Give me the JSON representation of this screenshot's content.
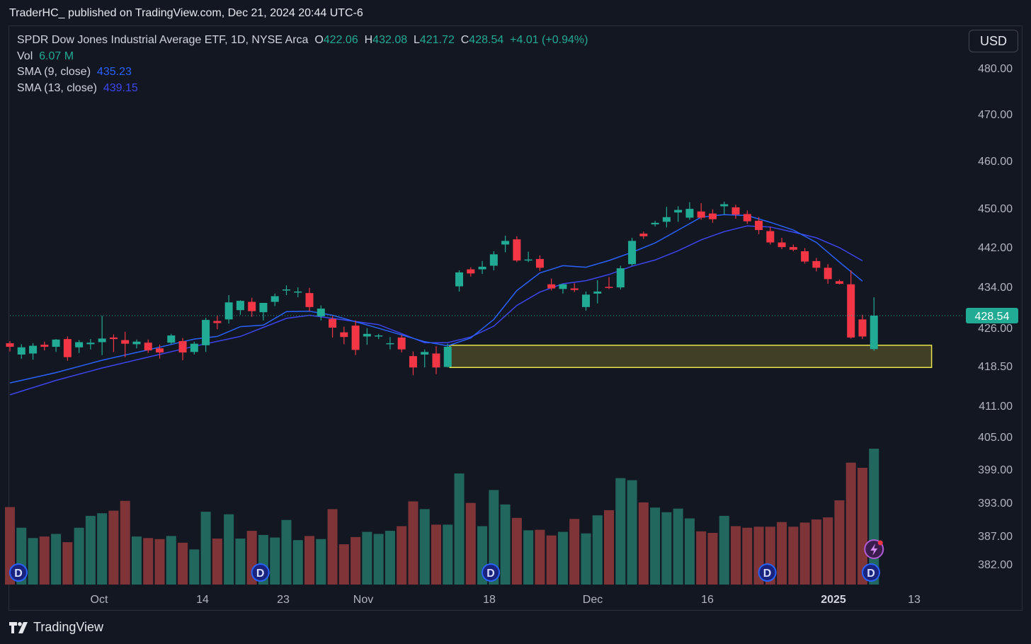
{
  "publisher_line": "TraderHC_ published on TradingView.com, Dec 21, 2024 20:44 UTC-6",
  "currency_button": "USD",
  "footer_brand": "TradingView",
  "legend": {
    "symbol": "SPDR Dow Jones Industrial Average ETF, 1D, NYSE Arca",
    "o_label": "O",
    "o_value": "422.06",
    "h_label": "H",
    "h_value": "432.08",
    "l_label": "L",
    "l_value": "421.72",
    "c_label": "C",
    "c_value": "428.54",
    "change": "+4.01 (+0.94%)",
    "vol_label": "Vol",
    "vol_value": "6.07 M",
    "sma9_label": "SMA (9, close)",
    "sma9_value": "435.23",
    "sma13_label": "SMA (13, close)",
    "sma13_value": "439.15"
  },
  "colors": {
    "up": "#22ab94",
    "down": "#f23645",
    "up_vol": "#22675e",
    "down_vol": "#7f3438",
    "sma9": "#2962ff",
    "sma13": "#3d45f0",
    "zone_fill": "#4a4627",
    "zone_stroke": "#e8e34b",
    "last_price_bg": "#22ab94"
  },
  "icons": {
    "dividend": "D",
    "flash": "lightning-icon"
  },
  "chart_data": {
    "type": "candlestick",
    "title": "SPDR Dow Jones Industrial Average ETF, 1D, NYSE Arca",
    "price_ticks": [
      "480.00",
      "470.00",
      "460.00",
      "450.00",
      "442.00",
      "434.00",
      "426.00",
      "418.50",
      "411.00",
      "405.00",
      "399.00",
      "393.00",
      "387.00",
      "382.00"
    ],
    "last_price": "428.54",
    "time_ticks": [
      {
        "label": "Oct",
        "bold": false
      },
      {
        "label": "14",
        "bold": false
      },
      {
        "label": "23",
        "bold": false
      },
      {
        "label": "Nov",
        "bold": false
      },
      {
        "label": "18",
        "bold": false
      },
      {
        "label": "Dec",
        "bold": false
      },
      {
        "label": "16",
        "bold": false
      },
      {
        "label": "2025",
        "bold": true
      },
      {
        "label": "13",
        "bold": false
      }
    ],
    "grid": false,
    "candles": [
      {
        "o": 423.2,
        "h": 423.6,
        "l": 421.6,
        "c": 422.5,
        "v": 15
      },
      {
        "o": 421.0,
        "h": 423.0,
        "l": 420.2,
        "c": 422.4,
        "v": 11
      },
      {
        "o": 421.2,
        "h": 423.2,
        "l": 420.0,
        "c": 422.7,
        "v": 9
      },
      {
        "o": 422.9,
        "h": 423.5,
        "l": 421.8,
        "c": 422.5,
        "v": 9.3
      },
      {
        "o": 422.5,
        "h": 424.0,
        "l": 421.5,
        "c": 423.9,
        "v": 9.8
      },
      {
        "o": 424.0,
        "h": 424.5,
        "l": 419.8,
        "c": 420.5,
        "v": 8.2
      },
      {
        "o": 422.4,
        "h": 423.8,
        "l": 421.3,
        "c": 423.4,
        "v": 11
      },
      {
        "o": 423.0,
        "h": 424.0,
        "l": 422.0,
        "c": 423.3,
        "v": 13.3
      },
      {
        "o": 423.4,
        "h": 428.5,
        "l": 420.9,
        "c": 424.1,
        "v": 13.8
      },
      {
        "o": 424.3,
        "h": 424.9,
        "l": 421.5,
        "c": 424.0,
        "v": 14.3
      },
      {
        "o": 423.8,
        "h": 425.4,
        "l": 420.5,
        "c": 423.1,
        "v": 16.2
      },
      {
        "o": 423.0,
        "h": 423.9,
        "l": 422.2,
        "c": 423.5,
        "v": 9.3
      },
      {
        "o": 423.3,
        "h": 423.9,
        "l": 421.3,
        "c": 421.8,
        "v": 9
      },
      {
        "o": 422.2,
        "h": 422.9,
        "l": 420.2,
        "c": 421.4,
        "v": 8.8
      },
      {
        "o": 423.3,
        "h": 425.0,
        "l": 423.0,
        "c": 424.7,
        "v": 9.4
      },
      {
        "o": 423.6,
        "h": 424.2,
        "l": 419.9,
        "c": 421.4,
        "v": 8.1
      },
      {
        "o": 421.5,
        "h": 423.5,
        "l": 421.0,
        "c": 423.1,
        "v": 6.8
      },
      {
        "o": 422.8,
        "h": 428.1,
        "l": 421.5,
        "c": 427.7,
        "v": 14.1
      },
      {
        "o": 427.5,
        "h": 428.6,
        "l": 425.9,
        "c": 427.1,
        "v": 8.9
      },
      {
        "o": 427.8,
        "h": 432.5,
        "l": 427.0,
        "c": 431.1,
        "v": 13.6
      },
      {
        "o": 429.6,
        "h": 431.5,
        "l": 428.7,
        "c": 431.4,
        "v": 8.9
      },
      {
        "o": 431.2,
        "h": 432.0,
        "l": 428.3,
        "c": 429.4,
        "v": 10.4
      },
      {
        "o": 429.2,
        "h": 431.0,
        "l": 427.6,
        "c": 431.0,
        "v": 9.6
      },
      {
        "o": 431.2,
        "h": 432.8,
        "l": 430.4,
        "c": 432.3,
        "v": 9.1
      },
      {
        "o": 433.4,
        "h": 434.4,
        "l": 432.5,
        "c": 433.6,
        "v": 12.5
      },
      {
        "o": 433.0,
        "h": 434.0,
        "l": 432.1,
        "c": 433.2,
        "v": 8.6
      },
      {
        "o": 432.9,
        "h": 433.9,
        "l": 429.4,
        "c": 430.2,
        "v": 9.4
      },
      {
        "o": 428.4,
        "h": 430.5,
        "l": 427.6,
        "c": 429.9,
        "v": 8.8
      },
      {
        "o": 427.9,
        "h": 428.5,
        "l": 424.3,
        "c": 426.2,
        "v": 14.6
      },
      {
        "o": 425.3,
        "h": 426.4,
        "l": 423.0,
        "c": 424.4,
        "v": 7.8
      },
      {
        "o": 426.6,
        "h": 427.6,
        "l": 420.9,
        "c": 421.9,
        "v": 9.2
      },
      {
        "o": 424.5,
        "h": 426.1,
        "l": 422.9,
        "c": 425.0,
        "v": 10.2
      },
      {
        "o": 424.5,
        "h": 425.0,
        "l": 424.0,
        "c": 424.7,
        "v": 9.8
      },
      {
        "o": 423.0,
        "h": 424.4,
        "l": 422.0,
        "c": 423.2,
        "v": 10.4
      },
      {
        "o": 424.3,
        "h": 424.8,
        "l": 421.4,
        "c": 422.0,
        "v": 11.3
      },
      {
        "o": 420.7,
        "h": 421.6,
        "l": 417.0,
        "c": 418.5,
        "v": 16.1
      },
      {
        "o": 421.0,
        "h": 422.0,
        "l": 418.5,
        "c": 421.5,
        "v": 14.6
      },
      {
        "o": 421.2,
        "h": 422.6,
        "l": 417.2,
        "c": 418.5,
        "v": 11.6
      },
      {
        "o": 418.6,
        "h": 423.1,
        "l": 418.5,
        "c": 422.5,
        "v": 11.6
      },
      {
        "o": 434.2,
        "h": 437.3,
        "l": 433.2,
        "c": 436.9,
        "v": 21.5
      },
      {
        "o": 437.5,
        "h": 437.9,
        "l": 436.1,
        "c": 436.7,
        "v": 15.8
      },
      {
        "o": 437.5,
        "h": 439.1,
        "l": 436.6,
        "c": 438.0,
        "v": 11.3
      },
      {
        "o": 438.2,
        "h": 441.0,
        "l": 437.3,
        "c": 440.4,
        "v": 18.3
      },
      {
        "o": 442.3,
        "h": 444.0,
        "l": 440.8,
        "c": 443.0,
        "v": 15.5
      },
      {
        "o": 443.3,
        "h": 443.9,
        "l": 438.9,
        "c": 439.2,
        "v": 12.9
      },
      {
        "o": 439.2,
        "h": 440.9,
        "l": 438.9,
        "c": 439.4,
        "v": 10.5
      },
      {
        "o": 439.5,
        "h": 440.2,
        "l": 437.2,
        "c": 437.8,
        "v": 10.6
      },
      {
        "o": 434.6,
        "h": 435.7,
        "l": 433.4,
        "c": 433.8,
        "v": 9.5
      },
      {
        "o": 433.7,
        "h": 434.7,
        "l": 432.8,
        "c": 434.6,
        "v": 10.2
      },
      {
        "o": 433.8,
        "h": 434.8,
        "l": 433.1,
        "c": 433.5,
        "v": 12.7
      },
      {
        "o": 430.2,
        "h": 433.2,
        "l": 429.5,
        "c": 432.6,
        "v": 9.9
      },
      {
        "o": 432.8,
        "h": 435.4,
        "l": 430.9,
        "c": 433.2,
        "v": 13.4
      },
      {
        "o": 434.1,
        "h": 436.0,
        "l": 433.7,
        "c": 434.0,
        "v": 14.4
      },
      {
        "o": 434.0,
        "h": 438.2,
        "l": 433.6,
        "c": 437.7,
        "v": 20.6
      },
      {
        "o": 438.5,
        "h": 443.6,
        "l": 438.2,
        "c": 443.0,
        "v": 20.2
      },
      {
        "o": 444.4,
        "h": 444.8,
        "l": 443.4,
        "c": 443.9,
        "v": 15.9
      },
      {
        "o": 446.2,
        "h": 446.9,
        "l": 445.8,
        "c": 446.5,
        "v": 14.9
      },
      {
        "o": 446.7,
        "h": 449.6,
        "l": 445.6,
        "c": 447.6,
        "v": 14.0
      },
      {
        "o": 448.5,
        "h": 449.7,
        "l": 446.7,
        "c": 449.0,
        "v": 14.7
      },
      {
        "o": 447.5,
        "h": 450.5,
        "l": 447.1,
        "c": 449.2,
        "v": 12.8
      },
      {
        "o": 448.7,
        "h": 450.3,
        "l": 447.1,
        "c": 447.5,
        "v": 10.3
      },
      {
        "o": 448.3,
        "h": 449.1,
        "l": 446.5,
        "c": 447.2,
        "v": 10.0
      },
      {
        "o": 449.7,
        "h": 450.6,
        "l": 448.1,
        "c": 450.1,
        "v": 13.3
      },
      {
        "o": 449.5,
        "h": 450.0,
        "l": 447.3,
        "c": 448.1,
        "v": 11.3
      },
      {
        "o": 448.2,
        "h": 448.9,
        "l": 446.3,
        "c": 446.8,
        "v": 11.0
      },
      {
        "o": 446.9,
        "h": 447.6,
        "l": 444.3,
        "c": 445.1,
        "v": 11.2
      },
      {
        "o": 444.9,
        "h": 445.7,
        "l": 442.3,
        "c": 442.7,
        "v": 11.2
      },
      {
        "o": 442.7,
        "h": 443.6,
        "l": 441.4,
        "c": 441.8,
        "v": 12.1
      },
      {
        "o": 441.8,
        "h": 442.3,
        "l": 441.0,
        "c": 441.3,
        "v": 11.2
      },
      {
        "o": 441.0,
        "h": 441.6,
        "l": 438.6,
        "c": 439.0,
        "v": 12.0
      },
      {
        "o": 439.1,
        "h": 439.7,
        "l": 437.1,
        "c": 437.8,
        "v": 12.6
      },
      {
        "o": 437.8,
        "h": 438.5,
        "l": 434.7,
        "c": 435.6,
        "v": 13.0
      },
      {
        "o": 435.2,
        "h": 435.5,
        "l": 434.6,
        "c": 434.7,
        "v": 16.3
      },
      {
        "o": 434.6,
        "h": 437.3,
        "l": 424.1,
        "c": 424.3,
        "v": 23.6
      },
      {
        "o": 427.8,
        "h": 428.7,
        "l": 424.0,
        "c": 424.5,
        "v": 22.6
      },
      {
        "o": 422.06,
        "h": 432.08,
        "l": 421.72,
        "c": 428.54,
        "v": 26.3
      }
    ],
    "sma9": [
      {
        "x": 0,
        "y": 415.5
      },
      {
        "x": 4,
        "y": 417.5
      },
      {
        "x": 8,
        "y": 419.9
      },
      {
        "x": 12,
        "y": 421.9
      },
      {
        "x": 16,
        "y": 424.0
      },
      {
        "x": 18,
        "y": 424.5
      },
      {
        "x": 20,
        "y": 426.4
      },
      {
        "x": 22,
        "y": 426.7
      },
      {
        "x": 24,
        "y": 429.3
      },
      {
        "x": 26,
        "y": 429.4
      },
      {
        "x": 28,
        "y": 428.6
      },
      {
        "x": 32,
        "y": 426.1
      },
      {
        "x": 36,
        "y": 423.5
      },
      {
        "x": 38,
        "y": 422.7
      },
      {
        "x": 40,
        "y": 424.2
      },
      {
        "x": 42,
        "y": 427.8
      },
      {
        "x": 44,
        "y": 433.4
      },
      {
        "x": 46,
        "y": 436.8
      },
      {
        "x": 48,
        "y": 438.2
      },
      {
        "x": 50,
        "y": 437.9
      },
      {
        "x": 52,
        "y": 439.2
      },
      {
        "x": 54,
        "y": 440.8
      },
      {
        "x": 56,
        "y": 442.6
      },
      {
        "x": 58,
        "y": 445.1
      },
      {
        "x": 60,
        "y": 447.6
      },
      {
        "x": 62,
        "y": 448.1
      },
      {
        "x": 64,
        "y": 447.9
      },
      {
        "x": 66,
        "y": 446.6
      },
      {
        "x": 68,
        "y": 445.1
      },
      {
        "x": 70,
        "y": 442.7
      },
      {
        "x": 72,
        "y": 438.9
      },
      {
        "x": 74,
        "y": 435.2
      }
    ],
    "sma13": [
      {
        "x": 0,
        "y": 413.2
      },
      {
        "x": 4,
        "y": 416.0
      },
      {
        "x": 8,
        "y": 418.4
      },
      {
        "x": 12,
        "y": 420.5
      },
      {
        "x": 16,
        "y": 422.6
      },
      {
        "x": 20,
        "y": 424.5
      },
      {
        "x": 24,
        "y": 428.0
      },
      {
        "x": 26,
        "y": 428.6
      },
      {
        "x": 28,
        "y": 428.0
      },
      {
        "x": 32,
        "y": 426.8
      },
      {
        "x": 36,
        "y": 423.3
      },
      {
        "x": 38,
        "y": 423.3
      },
      {
        "x": 40,
        "y": 424.4
      },
      {
        "x": 42,
        "y": 426.5
      },
      {
        "x": 44,
        "y": 430.5
      },
      {
        "x": 46,
        "y": 433.1
      },
      {
        "x": 48,
        "y": 434.7
      },
      {
        "x": 50,
        "y": 435.3
      },
      {
        "x": 52,
        "y": 436.5
      },
      {
        "x": 54,
        "y": 438.1
      },
      {
        "x": 56,
        "y": 439.3
      },
      {
        "x": 58,
        "y": 441.1
      },
      {
        "x": 60,
        "y": 443.2
      },
      {
        "x": 62,
        "y": 444.8
      },
      {
        "x": 64,
        "y": 445.9
      },
      {
        "x": 66,
        "y": 445.7
      },
      {
        "x": 68,
        "y": 444.7
      },
      {
        "x": 70,
        "y": 443.6
      },
      {
        "x": 72,
        "y": 441.7
      },
      {
        "x": 74,
        "y": 439.15
      }
    ],
    "support_zone": {
      "x_start": 38,
      "x_end": 80,
      "y_low": 418.5,
      "y_high": 422.8
    },
    "dividend_markers": [
      0,
      21,
      41,
      65,
      74
    ]
  }
}
